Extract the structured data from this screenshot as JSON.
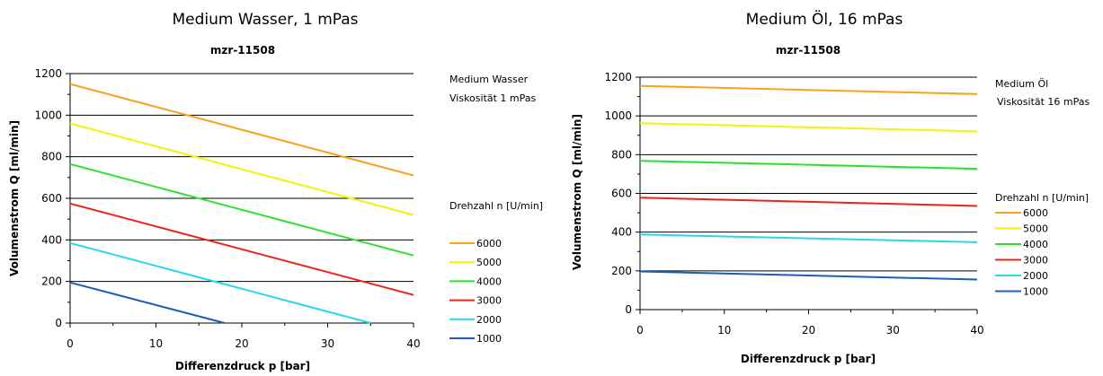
{
  "chart_data": [
    {
      "type": "line",
      "main_title": "Medium Wasser, 1 mPas",
      "title": "mzr-11508",
      "xlabel": "Differenzdruck p [bar]",
      "ylabel": "Volumenstrom Q [ml/min]",
      "xlim": [
        0,
        40
      ],
      "ylim": [
        0,
        1200
      ],
      "xticks": [
        0,
        10,
        20,
        30,
        40
      ],
      "yticks": [
        0,
        200,
        400,
        600,
        800,
        1000,
        1200
      ],
      "grid": "horizontal",
      "annotations": [
        "Medium Wasser",
        "Viskosität 1 mPas"
      ],
      "legend_title": "Drehzahl n [U/min]",
      "legend_position": "right",
      "series": [
        {
          "name": "6000",
          "color": "#F7A21B",
          "x": [
            0,
            40
          ],
          "y": [
            1150,
            710
          ]
        },
        {
          "name": "5000",
          "color": "#F5F20A",
          "x": [
            0,
            40
          ],
          "y": [
            960,
            520
          ]
        },
        {
          "name": "4000",
          "color": "#2EE02E",
          "x": [
            0,
            40
          ],
          "y": [
            765,
            325
          ]
        },
        {
          "name": "3000",
          "color": "#E8231C",
          "x": [
            0,
            40
          ],
          "y": [
            575,
            135
          ]
        },
        {
          "name": "2000",
          "color": "#25D6EE",
          "x": [
            0,
            35
          ],
          "y": [
            385,
            0
          ]
        },
        {
          "name": "1000",
          "color": "#1A5FB4",
          "x": [
            0,
            18
          ],
          "y": [
            195,
            0
          ]
        }
      ]
    },
    {
      "type": "line",
      "main_title": "Medium Öl, 16 mPas",
      "title": "mzr-11508",
      "xlabel": "Differenzdruck p [bar]",
      "ylabel": "Volumenstrom Q [ml/min]",
      "xlim": [
        0,
        40
      ],
      "ylim": [
        0,
        1200
      ],
      "xticks": [
        0,
        10,
        20,
        30,
        40
      ],
      "yticks": [
        0,
        200,
        400,
        600,
        800,
        1000,
        1200
      ],
      "grid": "horizontal",
      "annotations": [
        "Medium Öl",
        "Viskosität 16 mPas"
      ],
      "legend_title": "Drehzahl n [U/min]",
      "legend_position": "right",
      "series": [
        {
          "name": "6000",
          "color": "#F7A21B",
          "x": [
            0,
            40
          ],
          "y": [
            1155,
            1113
          ]
        },
        {
          "name": "5000",
          "color": "#F5F20A",
          "x": [
            0,
            40
          ],
          "y": [
            963,
            920
          ]
        },
        {
          "name": "4000",
          "color": "#2EE02E",
          "x": [
            0,
            40
          ],
          "y": [
            768,
            727
          ]
        },
        {
          "name": "3000",
          "color": "#E8231C",
          "x": [
            0,
            40
          ],
          "y": [
            578,
            535
          ]
        },
        {
          "name": "2000",
          "color": "#25D6EE",
          "x": [
            0,
            40
          ],
          "y": [
            388,
            348
          ]
        },
        {
          "name": "1000",
          "color": "#1A5FB4",
          "x": [
            0,
            40
          ],
          "y": [
            197,
            155
          ]
        }
      ]
    }
  ]
}
